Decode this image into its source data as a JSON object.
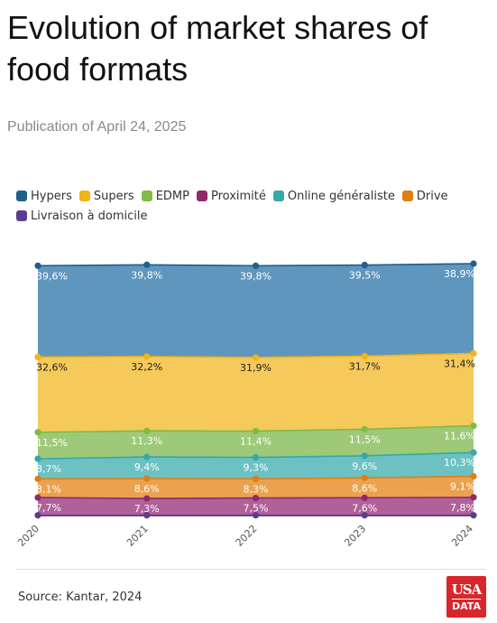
{
  "title": "Evolution of market shares of food formats",
  "subtitle": "Publication of April 24, 2025",
  "source": "Source: Kantar, 2024",
  "logo": {
    "line1": "USA",
    "line2": "DATA"
  },
  "chart_data": {
    "type": "area",
    "stacked": true,
    "x": [
      "2020",
      "2021",
      "2022",
      "2023",
      "2024"
    ],
    "legend_position": "top-left",
    "grid": false,
    "series": [
      {
        "name": "Hypers",
        "color": "#1f5f8b",
        "fill": "#5f96bd",
        "values": [
          39.6,
          39.8,
          39.8,
          39.5,
          38.9
        ],
        "labels": [
          "39,6%",
          "39,8%",
          "39,8%",
          "39,5%",
          "38,9%"
        ]
      },
      {
        "name": "Supers",
        "color": "#f2b418",
        "fill": "#f5c95a",
        "values": [
          32.6,
          32.2,
          31.9,
          31.7,
          31.4
        ],
        "labels": [
          "32,6%",
          "32,2%",
          "31,9%",
          "31,7%",
          "31,4%"
        ]
      },
      {
        "name": "EDMP",
        "color": "#7fbb45",
        "fill": "#9dc978",
        "values": [
          11.5,
          11.3,
          11.4,
          11.5,
          11.6
        ],
        "labels": [
          "11,5%",
          "11,3%",
          "11,4%",
          "11,5%",
          "11,6%"
        ]
      },
      {
        "name": "Proximité",
        "color": "#8e2a6b",
        "fill": "#b1619a",
        "values": [
          7.7,
          7.3,
          7.5,
          7.6,
          7.8
        ],
        "labels": [
          "7,7%",
          "7,3%",
          "7,5%",
          "7,6%",
          "7,8%"
        ]
      },
      {
        "name": "Online généraliste",
        "color": "#33a9a8",
        "fill": "#6dc1c2",
        "values": [
          8.7,
          9.4,
          9.3,
          9.6,
          10.3
        ],
        "labels": [
          "8,7%",
          "9,4%",
          "9,3%",
          "9,6%",
          "10,3%"
        ]
      },
      {
        "name": "Drive",
        "color": "#e07f13",
        "fill": "#eaa24f",
        "values": [
          8.1,
          8.6,
          8.3,
          8.6,
          9.1
        ],
        "labels": [
          "8,1%",
          "8,6%",
          "8,3%",
          "8,6%",
          "9,1%"
        ]
      },
      {
        "name": "Livraison à domicile",
        "color": "#5b3d8f",
        "fill": "#7a5aa8",
        "values": [
          0.5,
          0.5,
          0.5,
          0.5,
          0.5
        ],
        "labels": [
          "",
          "",
          "",
          "",
          ""
        ]
      }
    ]
  }
}
